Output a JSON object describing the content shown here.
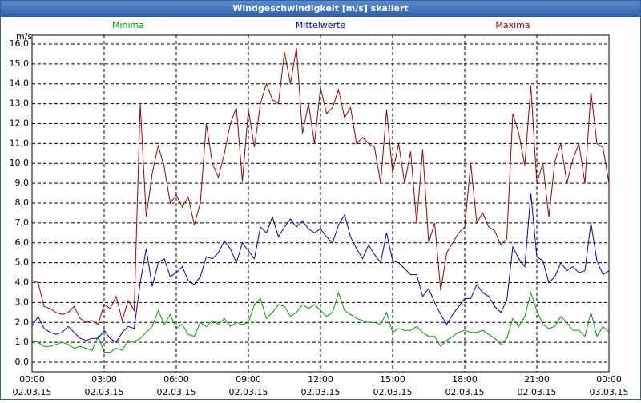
{
  "chart_data": {
    "type": "line",
    "title": "Windgeschwindigkeit [m/s] skaliert",
    "y_label": "m/s",
    "x": [
      0,
      0.25,
      0.5,
      0.75,
      1,
      1.25,
      1.5,
      1.75,
      2,
      2.25,
      2.5,
      2.75,
      3,
      3.25,
      3.5,
      3.75,
      4,
      4.25,
      4.5,
      4.75,
      5,
      5.25,
      5.5,
      5.75,
      6,
      6.25,
      6.5,
      6.75,
      7,
      7.25,
      7.5,
      7.75,
      8,
      8.25,
      8.5,
      8.75,
      9,
      9.25,
      9.5,
      9.75,
      10,
      10.25,
      10.5,
      10.75,
      11,
      11.25,
      11.5,
      11.75,
      12,
      12.25,
      12.5,
      12.75,
      13,
      13.25,
      13.5,
      13.75,
      14,
      14.25,
      14.5,
      14.75,
      15,
      15.25,
      15.5,
      15.75,
      16,
      16.25,
      16.5,
      16.75,
      17,
      17.25,
      17.5,
      17.75,
      18,
      18.25,
      18.5,
      18.75,
      19,
      19.25,
      19.5,
      19.75,
      20,
      20.25,
      20.5,
      20.75,
      21,
      21.25,
      21.5,
      21.75,
      22,
      22.25,
      22.5,
      22.75,
      23,
      23.25,
      23.5,
      23.75,
      24
    ],
    "series": [
      {
        "name": "Minima",
        "color": "#00a000",
        "values": [
          1.1,
          1.0,
          0.8,
          0.8,
          0.9,
          1.0,
          0.9,
          0.7,
          0.8,
          0.7,
          0.6,
          1.3,
          0.5,
          0.5,
          0.7,
          0.6,
          1.1,
          1.0,
          1.2,
          1.5,
          1.8,
          2.6,
          1.9,
          2.4,
          1.7,
          1.9,
          1.4,
          1.3,
          2.0,
          1.8,
          2.1,
          1.9,
          2.2,
          1.8,
          2.0,
          1.9,
          2.0,
          2.9,
          3.2,
          2.2,
          2.5,
          2.9,
          2.8,
          2.3,
          2.5,
          2.9,
          2.7,
          2.9,
          2.6,
          2.3,
          2.5,
          3.5,
          2.6,
          2.4,
          2.2,
          2.1,
          2.0,
          2.0,
          1.9,
          2.5,
          1.5,
          1.7,
          1.6,
          1.6,
          1.8,
          1.5,
          1.3,
          1.3,
          0.8,
          1.1,
          1.3,
          1.5,
          1.6,
          1.5,
          1.5,
          1.6,
          1.4,
          1.2,
          0.9,
          1.2,
          2.2,
          1.8,
          2.3,
          3.5,
          2.6,
          1.9,
          1.7,
          1.8,
          2.3,
          2.0,
          1.6,
          1.6,
          1.3,
          2.5,
          1.3,
          1.8,
          1.5
        ]
      },
      {
        "name": "Mittelwerte",
        "color": "#0000c0",
        "values": [
          1.8,
          2.3,
          1.7,
          1.5,
          1.4,
          1.5,
          1.8,
          1.5,
          1.2,
          1.1,
          1.2,
          1.2,
          1.6,
          1.2,
          1.0,
          1.5,
          1.8,
          1.7,
          4.0,
          5.7,
          3.8,
          5.0,
          5.2,
          4.3,
          4.5,
          4.8,
          4.1,
          3.9,
          4.3,
          5.3,
          5.2,
          5.5,
          6.1,
          5.7,
          5.0,
          6.0,
          5.6,
          5.2,
          6.8,
          6.5,
          7.3,
          6.3,
          6.8,
          7.2,
          6.8,
          7.1,
          6.7,
          6.5,
          6.7,
          6.3,
          6.0,
          6.9,
          7.4,
          6.3,
          5.7,
          5.2,
          5.9,
          5.4,
          5.0,
          6.5,
          5.1,
          5.0,
          4.7,
          4.4,
          4.4,
          3.3,
          3.7,
          3.0,
          2.4,
          1.9,
          2.4,
          2.8,
          3.2,
          3.2,
          3.9,
          3.5,
          3.3,
          2.8,
          2.5,
          3.1,
          5.8,
          5.2,
          4.8,
          8.5,
          5.3,
          5.1,
          4.0,
          4.3,
          5.0,
          4.6,
          4.8,
          4.5,
          4.6,
          7.0,
          5.1,
          4.4,
          4.6
        ]
      },
      {
        "name": "Maxima",
        "color": "#a00000",
        "values": [
          4.1,
          4.0,
          2.8,
          2.7,
          2.5,
          2.4,
          2.5,
          2.8,
          2.2,
          2.0,
          2.1,
          1.9,
          2.9,
          2.7,
          3.3,
          2.1,
          3.1,
          2.6,
          13.0,
          7.3,
          9.5,
          10.9,
          9.8,
          8.0,
          8.4,
          7.8,
          8.3,
          6.9,
          8.0,
          12.0,
          10.0,
          9.3,
          10.5,
          12.0,
          12.8,
          9.1,
          12.7,
          10.8,
          13.0,
          14.0,
          13.2,
          13.0,
          15.6,
          14.0,
          15.8,
          11.5,
          13.0,
          11.0,
          13.8,
          12.5,
          12.8,
          13.7,
          12.3,
          12.8,
          11.0,
          11.3,
          11.0,
          10.8,
          9.0,
          12.7,
          9.5,
          11.0,
          9.0,
          10.6,
          7.0,
          10.7,
          6.0,
          7.0,
          3.6,
          5.5,
          6.0,
          6.5,
          6.8,
          10.0,
          7.0,
          7.5,
          6.8,
          6.6,
          5.9,
          6.2,
          12.5,
          11.5,
          9.9,
          13.9,
          9.0,
          10.0,
          7.3,
          10.1,
          11.0,
          9.0,
          10.2,
          11.0,
          9.0,
          13.6,
          11.0,
          10.8,
          9.0
        ]
      }
    ],
    "xlim": [
      0,
      24
    ],
    "xticks": [
      {
        "value": 0,
        "label": [
          "00:00",
          "02.03.15"
        ]
      },
      {
        "value": 3,
        "label": [
          "03:00",
          "02.03.15"
        ]
      },
      {
        "value": 6,
        "label": [
          "06:00",
          "02.03.15"
        ]
      },
      {
        "value": 9,
        "label": [
          "09:00",
          "02.03.15"
        ]
      },
      {
        "value": 12,
        "label": [
          "12:00",
          "02.03.15"
        ]
      },
      {
        "value": 15,
        "label": [
          "15:00",
          "02.03.15"
        ]
      },
      {
        "value": 18,
        "label": [
          "18:00",
          "02.03.15"
        ]
      },
      {
        "value": 21,
        "label": [
          "21:00",
          "02.03.15"
        ]
      },
      {
        "value": 24,
        "label": [
          "00:00",
          "03.03.15"
        ]
      }
    ],
    "ylim": [
      -0.48,
      16.44
    ],
    "yticks": [
      {
        "value": 0,
        "label": "0,0"
      },
      {
        "value": 1,
        "label": "1,0"
      },
      {
        "value": 2,
        "label": "2,0"
      },
      {
        "value": 3,
        "label": "3,0"
      },
      {
        "value": 4,
        "label": "4,0"
      },
      {
        "value": 5,
        "label": "5,0"
      },
      {
        "value": 6,
        "label": "6,0"
      },
      {
        "value": 7,
        "label": "7,0"
      },
      {
        "value": 8,
        "label": "8,0"
      },
      {
        "value": 9,
        "label": "9,0"
      },
      {
        "value": 10,
        "label": "10,0"
      },
      {
        "value": 11,
        "label": "11,0"
      },
      {
        "value": 12,
        "label": "12,0"
      },
      {
        "value": 13,
        "label": "13,0"
      },
      {
        "value": 14,
        "label": "14,0"
      },
      {
        "value": 15,
        "label": "15,0"
      },
      {
        "value": 16,
        "label": "16,0"
      }
    ],
    "grid": true
  }
}
